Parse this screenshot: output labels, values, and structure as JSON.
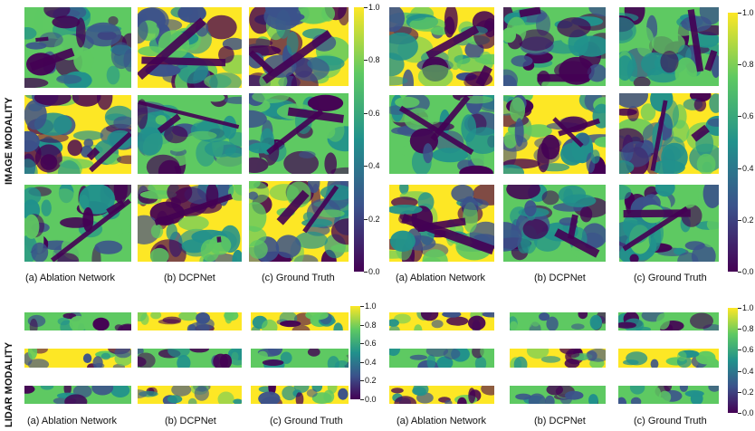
{
  "row_labels": {
    "image": "IMAGE MODALITY",
    "lidar": "LIDAR MODALITY"
  },
  "captions": {
    "ablation": "(a) Ablation Network",
    "dcpnet": "(b) DCPNet",
    "ground_truth": "(c) Ground Truth"
  },
  "colorbar": {
    "ticks": [
      "1.0",
      "0.8",
      "0.6",
      "0.4",
      "0.2",
      "0.0"
    ],
    "colormap": [
      "#440154",
      "#3b528b",
      "#21918c",
      "#5ec962",
      "#fde725"
    ]
  }
}
